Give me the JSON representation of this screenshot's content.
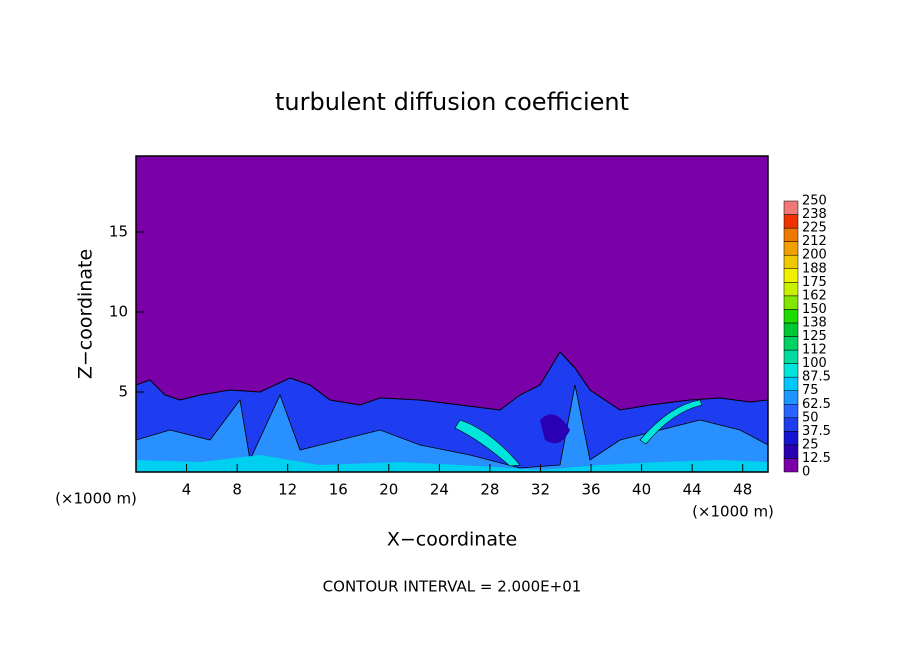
{
  "chart_data": {
    "type": "contour",
    "title": "turbulent diffusion coefficient",
    "xlabel": "X−coordinate",
    "ylabel": "Z−coordinate",
    "x_unit_left": "(×1000 m)",
    "x_unit_right": "(×1000 m)",
    "annotation": "CONTOUR INTERVAL = 2.000E+01",
    "xlim": [
      0,
      50
    ],
    "xticks": [
      4,
      8,
      12,
      16,
      20,
      24,
      28,
      32,
      36,
      40,
      44,
      48
    ],
    "ylim": [
      0,
      19.75
    ],
    "yticks": [
      5,
      10,
      15
    ],
    "colorbar": {
      "levels": [
        0,
        12.5,
        25,
        37.5,
        50,
        62.5,
        75,
        87.5,
        100,
        112,
        125,
        138,
        150,
        162,
        175,
        188,
        200,
        212,
        225,
        238,
        250
      ],
      "colors": [
        "#7a00a8",
        "#2a00b4",
        "#1414d2",
        "#1e3cf0",
        "#2864ff",
        "#1e96ff",
        "#00c8ff",
        "#00e6dc",
        "#00dca0",
        "#00d264",
        "#00c832",
        "#1edc00",
        "#82e600",
        "#c8f000",
        "#f0f000",
        "#f0c800",
        "#f0a000",
        "#f07800",
        "#f03200",
        "#f07878"
      ]
    }
  }
}
